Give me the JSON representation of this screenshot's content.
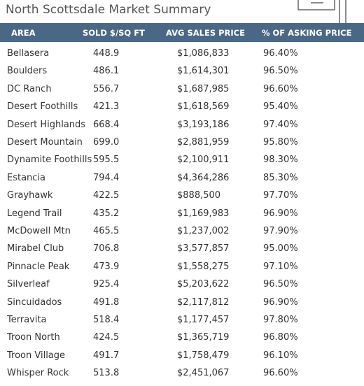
{
  "header": {
    "title": "North Scottsdale Market Summary"
  },
  "table": {
    "columns": [
      "AREA",
      "SOLD $/SQ FT",
      "AVG SALES PRICE",
      "% OF ASKING PRICE"
    ],
    "rows": [
      [
        "Bellasera",
        "448.9",
        "$1,086,833",
        "96.40%"
      ],
      [
        "Boulders",
        "486.1",
        "$1,614,301",
        "96.50%"
      ],
      [
        "DC Ranch",
        "556.7",
        "$1,687,985",
        "96.60%"
      ],
      [
        "Desert Foothills",
        "421.3",
        "$1,618,569",
        "95.40%"
      ],
      [
        "Desert Highlands",
        "668.4",
        "$3,193,186",
        "97.40%"
      ],
      [
        "Desert Mountain",
        "699.0",
        "$2,881,959",
        "95.80%"
      ],
      [
        "Dynamite Foothills",
        "595.5",
        "$2,100,911",
        "98.30%"
      ],
      [
        "Estancia",
        "794.4",
        "$4,364,286",
        "85.30%"
      ],
      [
        "Grayhawk",
        "422.5",
        "$888,500",
        "97.70%"
      ],
      [
        "Legend Trail",
        "435.2",
        "$1,169,983",
        "96.90%"
      ],
      [
        "McDowell Mtn",
        "465.5",
        "$1,237,002",
        "97.90%"
      ],
      [
        "Mirabel Club",
        "706.8",
        "$3,577,857",
        "95.00%"
      ],
      [
        "Pinnacle Peak",
        "473.9",
        "$1,558,275",
        "97.10%"
      ],
      [
        "Silverleaf",
        "925.4",
        "$5,203,622",
        "96.50%"
      ],
      [
        "Sincuidados",
        "491.8",
        "$2,117,812",
        "96.90%"
      ],
      [
        "Terravita",
        "518.4",
        "$1,177,457",
        "97.80%"
      ],
      [
        "Troon North",
        "424.5",
        "$1,365,719",
        "96.80%"
      ],
      [
        "Troon Village",
        "491.7",
        "$1,758,479",
        "96.10%"
      ],
      [
        "Whisper Rock",
        "513.8",
        "$2,451,067",
        "96.60%"
      ]
    ]
  }
}
